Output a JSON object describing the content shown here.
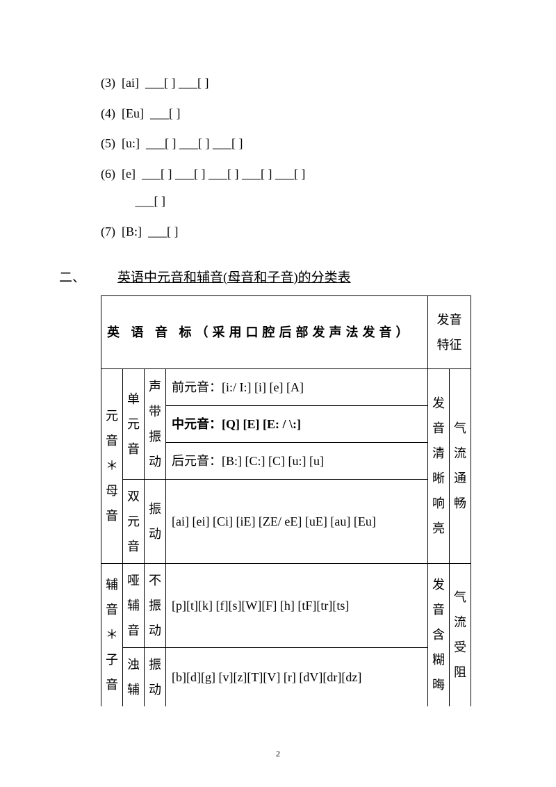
{
  "exercises": {
    "items": [
      {
        "num": "(3)",
        "sound": "[ai]",
        "blanks": "___[   ]  ___[    ]"
      },
      {
        "num": "(4)",
        "sound": "[Eu]",
        "blanks": "___[   ]"
      },
      {
        "num": "(5)",
        "sound": "[u:]",
        "blanks": "___[   ]  ___[    ]  ___[         ]"
      },
      {
        "num": "(6)",
        "sound": "[e]",
        "blanks": "___[   ]  ___[   ]  ___[   ]  ___[   ]  ___[   ]",
        "blanks2": "___[   ]"
      },
      {
        "num": "(7)",
        "sound": "[B:]",
        "blanks": "___[   ]"
      }
    ]
  },
  "section": {
    "num": "二、",
    "title": "英语中元音和辅音(母音和子音)的分类表"
  },
  "table": {
    "header": {
      "left": "英    语    音      标（采用口腔后部发声法发音）",
      "right": "发音特征"
    },
    "rows": {
      "vowel_label": "元音＊母音",
      "mono_label": "单元音",
      "vibrate_label": "声带振动",
      "front": "前元音：[i:/ I:] [i] [e] [A]",
      "mid": "中元音：[Q] [E] [E: / \\:]",
      "back": "后元音：[B:] [C:] [C] [u:] [u]",
      "diph_label": "双元音",
      "diph_vib": "振动",
      "diph": "[ai] [ei] [Ci] [iE] [ZE/ eE] [uE] [au] [Eu]",
      "vowel_feat": "发音清晰响亮",
      "airflow1": "气流通畅",
      "consonant_label": "辅音＊子音",
      "voiceless_label": "哑辅音",
      "no_vib": "不振动",
      "voiceless": "[p][t][k]   [f][s][W][F]   [h]   [tF][tr][ts]",
      "voiced_label": "浊辅",
      "voiced_vib": "振动",
      "voiced": "[b][d][g]   [v][z][T][V]   [r]   [dV][dr][dz]",
      "cons_feat": "发音含糊晦",
      "airflow2": "气流受阻"
    }
  },
  "page_number": "2"
}
